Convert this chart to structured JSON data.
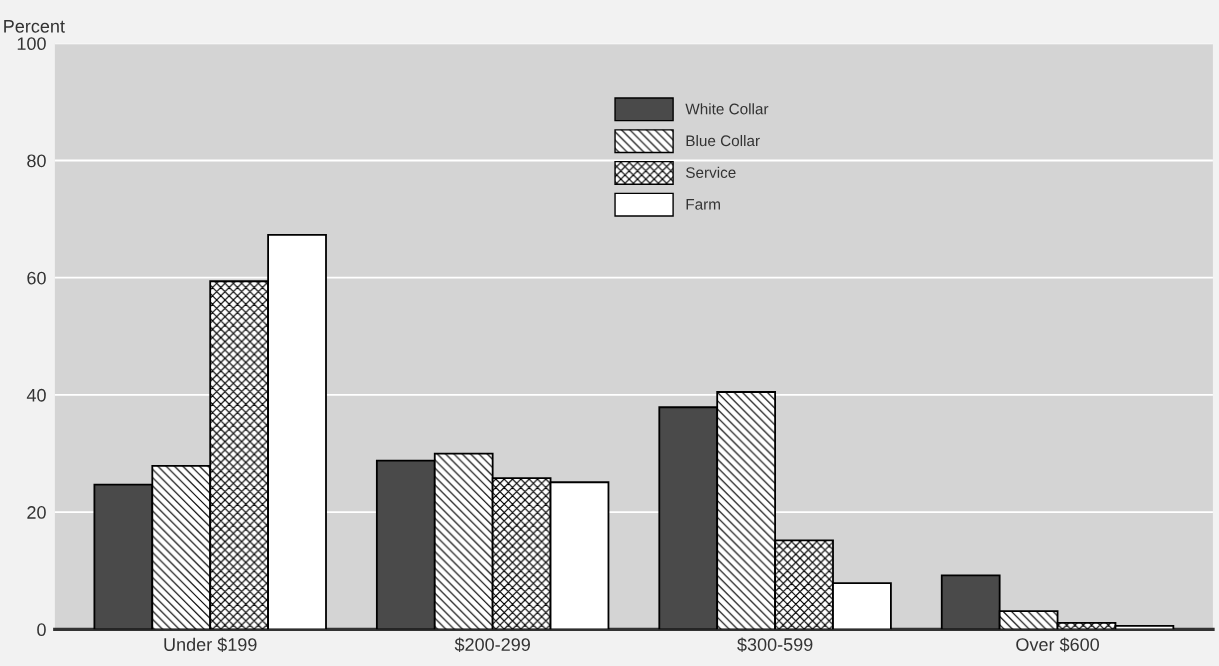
{
  "chart_data": {
    "type": "bar",
    "ylabel": "Percent",
    "categories": [
      "Under $199",
      "$200-299",
      "$300-599",
      "Over $600"
    ],
    "series": [
      {
        "name": "White Collar",
        "color": "#4a4a4a",
        "values": [
          24.7,
          28.8,
          37.9,
          9.2
        ]
      },
      {
        "name": "Blue Collar",
        "color": "#000000",
        "values": [
          27.9,
          30.0,
          40.5,
          3.1
        ]
      },
      {
        "name": "Service",
        "color": "#000000",
        "values": [
          59.4,
          25.8,
          15.2,
          1.1
        ]
      },
      {
        "name": "Farm",
        "color": "#ffffff",
        "values": [
          67.3,
          25.1,
          7.9,
          0.6
        ]
      }
    ],
    "ylim": [
      0,
      100
    ],
    "yticks": [
      0,
      20,
      40,
      60,
      80,
      100
    ],
    "grid": "y",
    "legend": "top"
  }
}
